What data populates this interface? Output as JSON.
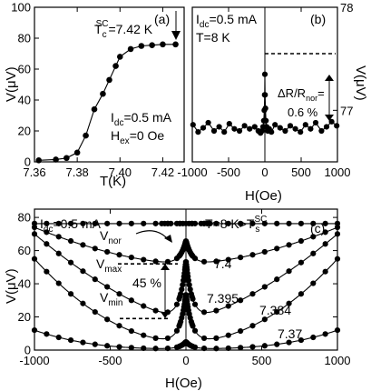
{
  "chart_data": [
    {
      "panel_label": "(a)",
      "type": "line",
      "xlabel": "T(K)",
      "ylabel": "V(μV)",
      "xlim": [
        7.36,
        7.43
      ],
      "ylim": [
        0,
        100
      ],
      "xticks": [
        "7.36",
        "7.38",
        "7.40",
        "7.42"
      ],
      "yticks": [
        "0",
        "20",
        "40",
        "60",
        "80",
        "100"
      ],
      "grid": false,
      "series": [
        {
          "x": [
            7.362,
            7.37,
            7.375,
            7.38,
            7.384,
            7.388,
            7.392,
            7.395,
            7.398,
            7.4,
            7.405,
            7.41,
            7.415,
            7.42,
            7.426
          ],
          "y": [
            1.0,
            1.5,
            2.5,
            6.0,
            17.0,
            34.0,
            44.0,
            53.0,
            62.0,
            68.0,
            73.0,
            75.0,
            75.5,
            76.0,
            76.0
          ]
        }
      ],
      "annotations": {
        "tc_prefix": "T",
        "tc_sup": "SC",
        "tc_sub": "c",
        "tc_value": "=7.42 K",
        "idc": "I",
        "idc_sub": "dc",
        "idc_value": "=0.5 mA",
        "hex": "H",
        "hex_sub": "ex",
        "hex_value": "=0 Oe"
      }
    },
    {
      "panel_label": "(b)",
      "type": "line",
      "xlabel": "H(Oe)",
      "ylabel_right": "V(μV)",
      "xlim": [
        -1000,
        1000
      ],
      "ylim": [
        76.5,
        78
      ],
      "xticks": [
        "-1000",
        "-500",
        "0",
        "500",
        "1000"
      ],
      "yticks_right": [
        "77",
        "78"
      ],
      "grid": false,
      "series": [
        {
          "x": [
            -990,
            -920,
            -850,
            -780,
            -700,
            -630,
            -560,
            -490,
            -420,
            -350,
            -280,
            -210,
            -140,
            -90,
            -60,
            -40,
            -25,
            -15,
            -8,
            -3,
            0,
            3,
            8,
            15,
            25,
            40,
            60,
            90,
            140,
            210,
            280,
            350,
            420,
            490,
            560,
            630,
            700,
            780,
            850,
            920,
            990
          ],
          "y": [
            76.86,
            76.79,
            76.83,
            76.88,
            76.8,
            76.84,
            76.79,
            76.87,
            76.82,
            76.8,
            76.85,
            76.82,
            76.84,
            76.8,
            76.78,
            76.8,
            76.84,
            76.9,
            77.0,
            77.15,
            77.35,
            77.15,
            77.02,
            76.9,
            76.84,
            76.8,
            76.82,
            76.79,
            76.86,
            76.83,
            76.8,
            76.85,
            76.82,
            76.79,
            76.86,
            76.82,
            76.88,
            76.8,
            76.84,
            76.89,
            76.85
          ]
        }
      ],
      "annotations": {
        "idc": "I",
        "idc_sub": "dc",
        "idc_value": "=0.5 mA",
        "temp": "T=8 K",
        "dr_prefix": "ΔR/R",
        "dr_sub": "nor",
        "dr_eq": "=",
        "dr_value": "0.6 %",
        "dashed_level": 77.55
      }
    },
    {
      "panel_label": "(c)",
      "type": "line",
      "xlabel": "H(Oe)",
      "ylabel": "V(μV)",
      "xlim": [
        -1000,
        1000
      ],
      "ylim": [
        0,
        85
      ],
      "xticks": [
        "-1000",
        "-500",
        "0",
        "500",
        "1000"
      ],
      "yticks": [
        "0",
        "20",
        "40",
        "60",
        "80"
      ],
      "grid": false,
      "series": [
        {
          "name": "8",
          "base": 76.3,
          "flat": true
        },
        {
          "name": "7.4",
          "base": 52.0,
          "high": 74.0,
          "peak": 66.0,
          "shape": 1.7
        },
        {
          "name": "7.395",
          "base": 19.0,
          "high": 70.0,
          "peak": 54.0,
          "shape": 1.5
        },
        {
          "name": "7.384",
          "base": 5.0,
          "high": 55.0,
          "peak": 34.0,
          "shape": 2.0
        },
        {
          "name": "7.37",
          "base": 0.8,
          "high": 12.0,
          "peak": 5.0,
          "shape": 2.8
        }
      ],
      "annotations": {
        "idc": "I",
        "idc_sub": "dc",
        "idc_value": "=0.5 mA",
        "vnor": "V",
        "vnor_sub": "nor",
        "temp_prefix": "T=8 K>T",
        "temp_sup": "SC",
        "temp_sub": "s",
        "vmax": "V",
        "vmax_sub": "max",
        "vmin": "V",
        "vmin_sub": "min",
        "pct": "45 %",
        "vmax_level": 52.0,
        "vmin_level": 19.0
      }
    }
  ]
}
